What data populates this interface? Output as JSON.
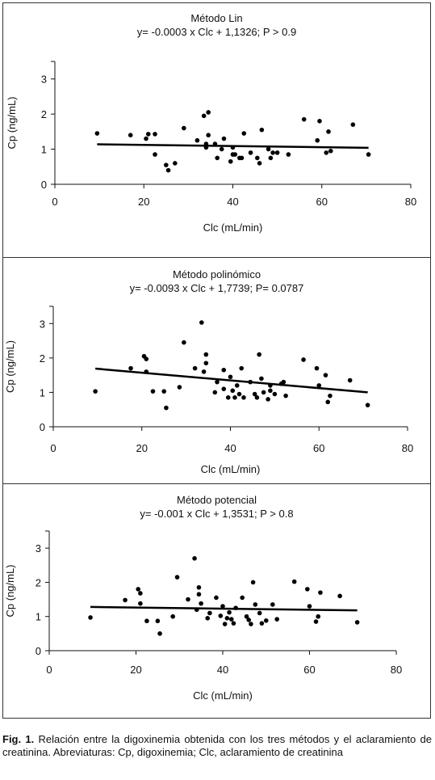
{
  "caption": {
    "label": "Fig. 1.",
    "text": "Relación entre la digoxinemia obtenida con los tres métodos y el aclaramiento de creatinina. Abreviaturas: Cp, digoxinemia; Clc, aclaramiento de creatinina"
  },
  "chart_data": [
    {
      "type": "scatter",
      "title": "Método Lin",
      "subtitle": "y= -0.0003 x Clc + 1,1326; P > 0.9",
      "xlabel": "Clc (mL/min)",
      "ylabel": "Cp (ng/mL)",
      "xlim": [
        0,
        80
      ],
      "ylim": [
        0,
        3.5
      ],
      "xticks": [
        0,
        20,
        40,
        60,
        80
      ],
      "yticks": [
        0,
        1,
        2,
        3
      ],
      "regression": {
        "x": [
          9.5,
          70.5
        ],
        "y": [
          1.14,
          1.04
        ]
      },
      "points": [
        [
          9.5,
          1.45
        ],
        [
          17,
          1.4
        ],
        [
          20.5,
          1.3
        ],
        [
          21,
          1.43
        ],
        [
          22.5,
          1.43
        ],
        [
          22.5,
          0.85
        ],
        [
          25,
          0.55
        ],
        [
          25.5,
          0.4
        ],
        [
          27,
          0.6
        ],
        [
          29,
          1.6
        ],
        [
          32,
          1.25
        ],
        [
          33.5,
          1.95
        ],
        [
          34,
          1.05
        ],
        [
          34,
          1.15
        ],
        [
          34.5,
          2.05
        ],
        [
          34.5,
          1.4
        ],
        [
          36,
          1.15
        ],
        [
          36.5,
          0.75
        ],
        [
          37.5,
          1.0
        ],
        [
          38,
          1.3
        ],
        [
          39.5,
          0.65
        ],
        [
          40,
          1.05
        ],
        [
          40,
          0.85
        ],
        [
          40.5,
          0.85
        ],
        [
          41.5,
          0.75
        ],
        [
          42,
          0.75
        ],
        [
          42.5,
          1.45
        ],
        [
          44,
          0.9
        ],
        [
          45.5,
          0.75
        ],
        [
          46,
          0.6
        ],
        [
          46.5,
          1.55
        ],
        [
          48,
          1.0
        ],
        [
          48.5,
          0.75
        ],
        [
          49,
          0.9
        ],
        [
          50,
          0.9
        ],
        [
          52.5,
          0.85
        ],
        [
          56,
          1.85
        ],
        [
          59,
          1.25
        ],
        [
          59.5,
          1.8
        ],
        [
          61,
          0.9
        ],
        [
          61.5,
          1.5
        ],
        [
          62,
          0.95
        ],
        [
          67,
          1.7
        ],
        [
          70.5,
          0.85
        ]
      ]
    },
    {
      "type": "scatter",
      "title": "Método polinómico",
      "subtitle": "y= -0.0093 x Clc + 1,7739; P= 0.0787",
      "xlabel": "Clc (mL/min)",
      "ylabel": "Cp (ng/mL)",
      "xlim": [
        0,
        80
      ],
      "ylim": [
        0,
        3.5
      ],
      "xticks": [
        0,
        20,
        40,
        60,
        80
      ],
      "yticks": [
        0,
        1,
        2,
        3
      ],
      "regression": {
        "x": [
          9.5,
          71
        ],
        "y": [
          1.69,
          1.0
        ]
      },
      "points": [
        [
          9.5,
          1.03
        ],
        [
          17.5,
          1.7
        ],
        [
          20.5,
          2.05
        ],
        [
          21,
          1.97
        ],
        [
          21,
          1.6
        ],
        [
          22.5,
          1.03
        ],
        [
          25,
          1.03
        ],
        [
          25.5,
          0.55
        ],
        [
          28.5,
          1.15
        ],
        [
          29.5,
          2.45
        ],
        [
          32,
          1.7
        ],
        [
          33.5,
          3.03
        ],
        [
          34,
          1.6
        ],
        [
          34.5,
          2.1
        ],
        [
          34.5,
          1.85
        ],
        [
          36.5,
          1.0
        ],
        [
          37,
          1.3
        ],
        [
          38.5,
          1.65
        ],
        [
          38.5,
          1.1
        ],
        [
          39.5,
          0.85
        ],
        [
          40,
          1.45
        ],
        [
          40.5,
          1.05
        ],
        [
          41,
          0.85
        ],
        [
          41.5,
          1.2
        ],
        [
          42,
          0.95
        ],
        [
          42.5,
          1.7
        ],
        [
          43,
          0.85
        ],
        [
          44.5,
          1.3
        ],
        [
          45.5,
          0.95
        ],
        [
          46,
          0.85
        ],
        [
          46.5,
          2.1
        ],
        [
          47,
          1.4
        ],
        [
          47.5,
          1.0
        ],
        [
          48.5,
          0.8
        ],
        [
          49,
          1.05
        ],
        [
          49,
          1.2
        ],
        [
          50,
          0.95
        ],
        [
          51.5,
          1.25
        ],
        [
          52,
          1.3
        ],
        [
          52.5,
          0.9
        ],
        [
          56.5,
          1.95
        ],
        [
          59.5,
          1.7
        ],
        [
          60,
          1.2
        ],
        [
          61.5,
          1.5
        ],
        [
          62,
          0.72
        ],
        [
          62.5,
          0.9
        ],
        [
          67,
          1.35
        ],
        [
          71,
          0.63
        ]
      ]
    },
    {
      "type": "scatter",
      "title": "Método potencial",
      "subtitle": "y= -0.001 x Clc + 1,3531; P > 0.8",
      "xlabel": "Clc (mL/min)",
      "ylabel": "Cp (ng/mL)",
      "xlim": [
        0,
        80
      ],
      "ylim": [
        0,
        3.5
      ],
      "xticks": [
        0,
        20,
        40,
        60,
        80
      ],
      "yticks": [
        0,
        1,
        2,
        3
      ],
      "regression": {
        "x": [
          9.5,
          71
        ],
        "y": [
          1.28,
          1.18
        ]
      },
      "points": [
        [
          9.5,
          0.97
        ],
        [
          17.5,
          1.48
        ],
        [
          20.5,
          1.8
        ],
        [
          21,
          1.68
        ],
        [
          21,
          1.38
        ],
        [
          22.5,
          0.87
        ],
        [
          25,
          0.87
        ],
        [
          25.5,
          0.5
        ],
        [
          28.5,
          1.0
        ],
        [
          29.5,
          2.15
        ],
        [
          32,
          1.5
        ],
        [
          33.5,
          2.7
        ],
        [
          34,
          1.2
        ],
        [
          34.5,
          1.85
        ],
        [
          34.5,
          1.65
        ],
        [
          35,
          1.38
        ],
        [
          36.5,
          0.95
        ],
        [
          37,
          1.1
        ],
        [
          38.5,
          1.55
        ],
        [
          39.5,
          1.02
        ],
        [
          40,
          1.3
        ],
        [
          40.5,
          0.78
        ],
        [
          41,
          0.95
        ],
        [
          41.5,
          1.12
        ],
        [
          42,
          0.92
        ],
        [
          42.5,
          0.8
        ],
        [
          43,
          1.25
        ],
        [
          44.5,
          1.55
        ],
        [
          45.5,
          1.0
        ],
        [
          46,
          0.9
        ],
        [
          46.5,
          0.78
        ],
        [
          47,
          2.0
        ],
        [
          47.5,
          1.35
        ],
        [
          48.5,
          1.1
        ],
        [
          49,
          0.8
        ],
        [
          50,
          0.88
        ],
        [
          51.5,
          1.35
        ],
        [
          52.5,
          0.92
        ],
        [
          56.5,
          2.02
        ],
        [
          59.5,
          1.8
        ],
        [
          60,
          1.3
        ],
        [
          61.5,
          0.85
        ],
        [
          62,
          1.0
        ],
        [
          62.5,
          1.7
        ],
        [
          67,
          1.6
        ],
        [
          71,
          0.83
        ]
      ]
    }
  ]
}
